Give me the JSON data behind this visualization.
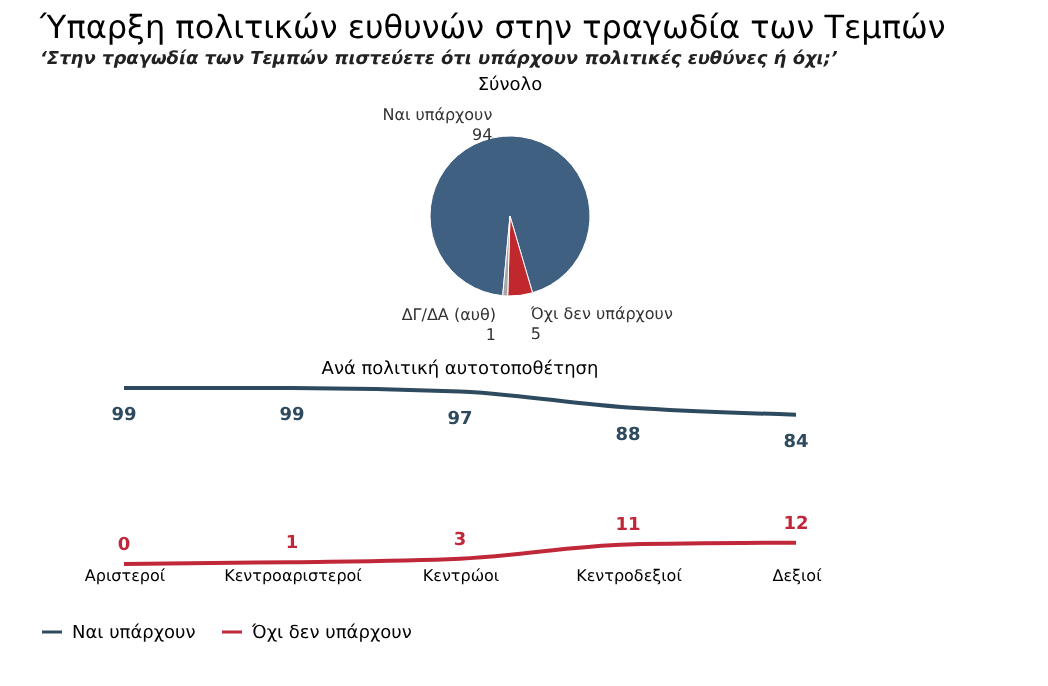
{
  "chart_data": [
    {
      "type": "pie",
      "title": "Ύπαρξη πολιτικών ευθυνών στην τραγωδία των Τεμπών",
      "subtitle": "‘Στην τραγωδία των Τεμπών πιστεύετε ότι υπάρχουν πολιτικές ευθύνες ή όχι;’",
      "annotations": [
        "Σύνολο"
      ],
      "categories": [
        "Ναι υπάρχουν",
        "Όχι δεν υπάρχουν",
        "ΔΓ/ΔΑ (αυθ)"
      ],
      "values": [
        94,
        5,
        1
      ],
      "colors": [
        "#3f6080",
        "#c0282d",
        "#a6a6a6"
      ],
      "data_labels": true
    },
    {
      "type": "line",
      "title": "Ανά πολιτική αυτοτοποθέτηση",
      "categories": [
        "Αριστεροί",
        "Κεντροαριστεροί",
        "Κεντρώοι",
        "Κεντροδεξιοί",
        "Δεξιοί"
      ],
      "series": [
        {
          "name": "Ναι υπάρχουν",
          "color": "#2e4a5e",
          "values": [
            99,
            99,
            97,
            88,
            84
          ]
        },
        {
          "name": "Όχι δεν υπάρχουν",
          "color": "#c0283a",
          "values": [
            0,
            1,
            3,
            11,
            12
          ]
        }
      ],
      "data_labels": true,
      "legend": "bottom"
    }
  ]
}
